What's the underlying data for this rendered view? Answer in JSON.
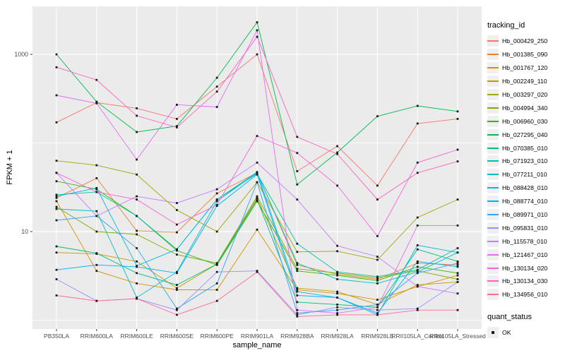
{
  "figure": {
    "y_axis_title": "FPKM + 1",
    "x_axis_title": "sample_name",
    "legend_title": "tracking_id",
    "quant_legend_title": "quant_status",
    "quant_legend_item": "OK"
  },
  "colors": {
    "panel_bg": "#ebebeb",
    "grid": "#ffffff",
    "axis_text": "#4d4d4d",
    "tick_mark": "#333333",
    "point": "#1a1a1a",
    "legend_key_bg": "#efefef"
  },
  "chart_data": {
    "type": "line",
    "title": "",
    "xlabel": "sample_name",
    "ylabel": "FPKM + 1",
    "y_scale": "log10",
    "ylim": [
      1,
      3400
    ],
    "yticks": [
      10,
      1000
    ],
    "ytick_labels": [
      "10",
      "1000"
    ],
    "gridlines": [
      1,
      10,
      100,
      1000
    ],
    "grid": true,
    "legend_position": "right",
    "point_marker": {
      "legend_title": "quant_status",
      "label": "OK",
      "shape": "square",
      "color": "#1a1a1a"
    },
    "categories": [
      "PB350LA",
      "RRIM600LA",
      "RRIM600LE",
      "RRIM600SE",
      "RRIM600PE",
      "RRIM901LA",
      "RRIM928BA",
      "RRIM928LA",
      "RRIM928LE",
      "RRII105LA_Control",
      "RRII105LA_Stressed"
    ],
    "series": [
      {
        "name": "Hb_000429_250",
        "color": "#F8766D",
        "values": [
          171,
          285,
          246,
          187,
          432,
          1000,
          48,
          92,
          33,
          166,
          187
        ]
      },
      {
        "name": "Hb_001385_090",
        "color": "#EA8331",
        "values": [
          24,
          40,
          10.2,
          9.8,
          27,
          46,
          4.2,
          3.3,
          2.9,
          4.4,
          4.2
        ]
      },
      {
        "name": "Hb_001767_120",
        "color": "#D89000",
        "values": [
          22,
          3.6,
          2.6,
          2.2,
          2.2,
          10.5,
          2.2,
          2.0,
          1.7,
          2.4,
          3.2
        ]
      },
      {
        "name": "Hb_002249_110",
        "color": "#C09B00",
        "values": [
          5.8,
          5.6,
          4.6,
          2.3,
          4.3,
          24,
          2.3,
          2.1,
          1.5,
          2.5,
          2.7
        ]
      },
      {
        "name": "Hb_003297_020",
        "color": "#A3A500",
        "values": [
          63,
          56,
          44,
          17.5,
          10,
          36,
          5.9,
          6.0,
          4.8,
          14.4,
          23
        ]
      },
      {
        "name": "Hb_004994_340",
        "color": "#7CAE00",
        "values": [
          19,
          10,
          9.3,
          5.5,
          4.4,
          25,
          3.8,
          3.4,
          3.0,
          3.6,
          2.9
        ]
      },
      {
        "name": "Hb_006960_030",
        "color": "#39B600",
        "values": [
          37,
          30,
          15,
          6.1,
          4.2,
          22,
          3.6,
          3.2,
          2.8,
          4.0,
          3.4
        ]
      },
      {
        "name": "Hb_027295_040",
        "color": "#00BB4E",
        "values": [
          1000,
          292,
          133,
          155,
          545,
          2300,
          34,
          78,
          200,
          262,
          227
        ]
      },
      {
        "name": "Hb_070385_010",
        "color": "#00BF7D",
        "values": [
          6.8,
          5.7,
          3.4,
          2.5,
          4.3,
          23,
          1.6,
          1.5,
          1.4,
          6.3,
          4.6
        ]
      },
      {
        "name": "Hb_071923_010",
        "color": "#00C1A3",
        "values": [
          26,
          28,
          15,
          6.3,
          23,
          45,
          7.3,
          3.5,
          3.1,
          3.7,
          6.5
        ]
      },
      {
        "name": "Hb_077211_010",
        "color": "#00BFC4",
        "values": [
          18,
          17,
          1.8,
          3.5,
          22,
          46,
          4.4,
          2.9,
          2.6,
          3.5,
          5.8
        ]
      },
      {
        "name": "Hb_088428_010",
        "color": "#00BAE0",
        "values": [
          25,
          31,
          4.1,
          6.3,
          23,
          47,
          2.1,
          1.8,
          1.15,
          7.0,
          5.8
        ]
      },
      {
        "name": "Hb_088774_010",
        "color": "#00B0F6",
        "values": [
          3.7,
          4.2,
          4.0,
          3.4,
          19.5,
          44,
          1.9,
          1.8,
          1.2,
          4.6,
          4.0
        ]
      },
      {
        "name": "Hb_089971_010",
        "color": "#35A2FF",
        "values": [
          13.4,
          15,
          6.5,
          1.35,
          2.6,
          36,
          1.2,
          1.3,
          1.5,
          3.4,
          4.4
        ]
      },
      {
        "name": "Hb_095831_010",
        "color": "#9590FF",
        "values": [
          2.9,
          1.65,
          1.75,
          1.3,
          3.5,
          3.6,
          1.15,
          1.4,
          1.3,
          1.35,
          2.7
        ]
      },
      {
        "name": "Hb_115578_010",
        "color": "#C77CFF",
        "values": [
          46,
          15,
          25,
          21,
          30,
          60,
          23,
          6.9,
          5.2,
          2.4,
          2.0
        ]
      },
      {
        "name": "Hb_121467_010",
        "color": "#E76BF3",
        "values": [
          345,
          280,
          65,
          270,
          255,
          1870,
          1.3,
          1.2,
          1.4,
          11.7,
          11.7
        ]
      },
      {
        "name": "Hb_130134_020",
        "color": "#FA62DB",
        "values": [
          46,
          28,
          23,
          12,
          20,
          120,
          77,
          33,
          8.9,
          60,
          84
        ]
      },
      {
        "name": "Hb_130134_030",
        "color": "#FF62BC",
        "values": [
          715,
          515,
          203,
          150,
          380,
          1580,
          117,
          75,
          23,
          46,
          62
        ]
      },
      {
        "name": "Hb_134956_010",
        "color": "#FF6A98",
        "values": [
          1.9,
          1.65,
          1.75,
          1.15,
          1.65,
          3.5,
          1.1,
          1.15,
          1.15,
          1.3,
          1.3
        ]
      }
    ]
  }
}
